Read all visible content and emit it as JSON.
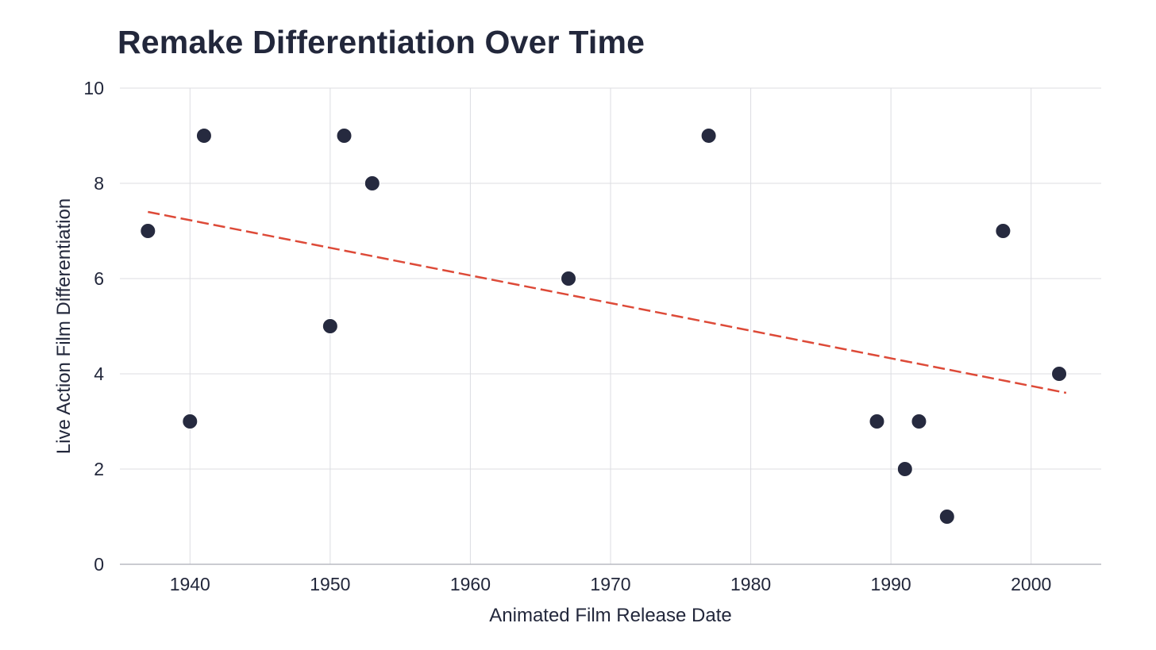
{
  "chart_data": {
    "type": "scatter",
    "title": "Remake Differentiation Over Time",
    "xlabel": "Animated Film Release Date",
    "ylabel": "Live Action Film Differentiation",
    "xlim": [
      1935,
      2005
    ],
    "ylim": [
      0,
      10
    ],
    "xticks": [
      1940,
      1950,
      1960,
      1970,
      1980,
      1990,
      2000
    ],
    "yticks": [
      0,
      2,
      4,
      6,
      8,
      10
    ],
    "grid": true,
    "legend": "none",
    "series": [
      {
        "name": "films",
        "color": "#262a3f",
        "points": [
          {
            "x": 1937,
            "y": 7
          },
          {
            "x": 1940,
            "y": 3
          },
          {
            "x": 1941,
            "y": 9
          },
          {
            "x": 1950,
            "y": 5
          },
          {
            "x": 1951,
            "y": 9
          },
          {
            "x": 1953,
            "y": 8
          },
          {
            "x": 1967,
            "y": 6
          },
          {
            "x": 1977,
            "y": 9
          },
          {
            "x": 1989,
            "y": 3
          },
          {
            "x": 1991,
            "y": 2
          },
          {
            "x": 1992,
            "y": 3
          },
          {
            "x": 1994,
            "y": 1
          },
          {
            "x": 1998,
            "y": 7
          },
          {
            "x": 2002,
            "y": 4
          }
        ]
      }
    ],
    "trendline": {
      "style": "dashed",
      "color": "#dd4a38",
      "x": [
        1937,
        2002.5
      ],
      "y": [
        7.4,
        3.6
      ]
    }
  }
}
